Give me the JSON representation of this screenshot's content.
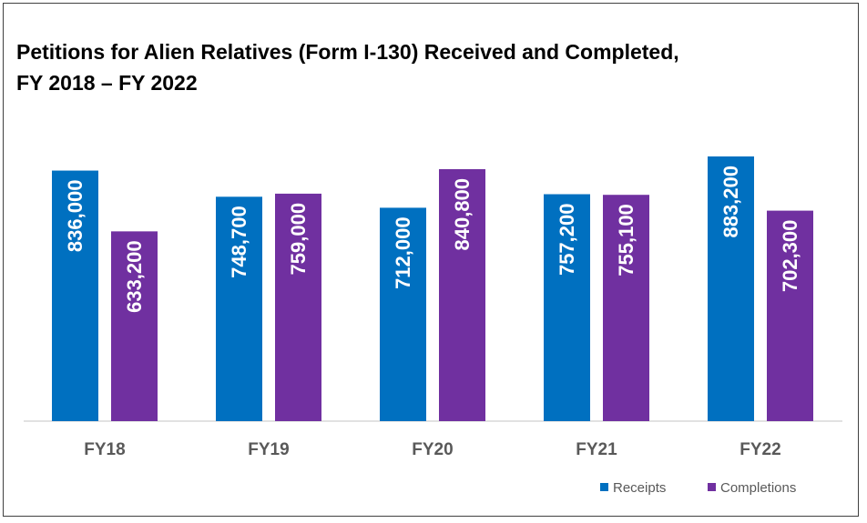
{
  "chart_data": {
    "type": "bar",
    "title_line1": "Petitions for Alien Relatives (Form I-130) Received and Completed,",
    "title_line2": "FY 2018 – FY 2022",
    "categories": [
      "FY18",
      "FY19",
      "FY20",
      "FY21",
      "FY22"
    ],
    "series": [
      {
        "name": "Receipts",
        "color": "#0070C0",
        "values": [
          836000,
          748700,
          712000,
          757200,
          883200
        ],
        "labels": [
          "836,000",
          "748,700",
          "712,000",
          "757,200",
          "883,200"
        ]
      },
      {
        "name": "Completions",
        "color": "#7030A0",
        "values": [
          633200,
          759000,
          840800,
          755100,
          702300
        ],
        "labels": [
          "633,200",
          "759,000",
          "840,800",
          "755,100",
          "702,300"
        ]
      }
    ],
    "ylim": [
      0,
      883200
    ],
    "legend_position": "bottom-right",
    "grid": false
  }
}
